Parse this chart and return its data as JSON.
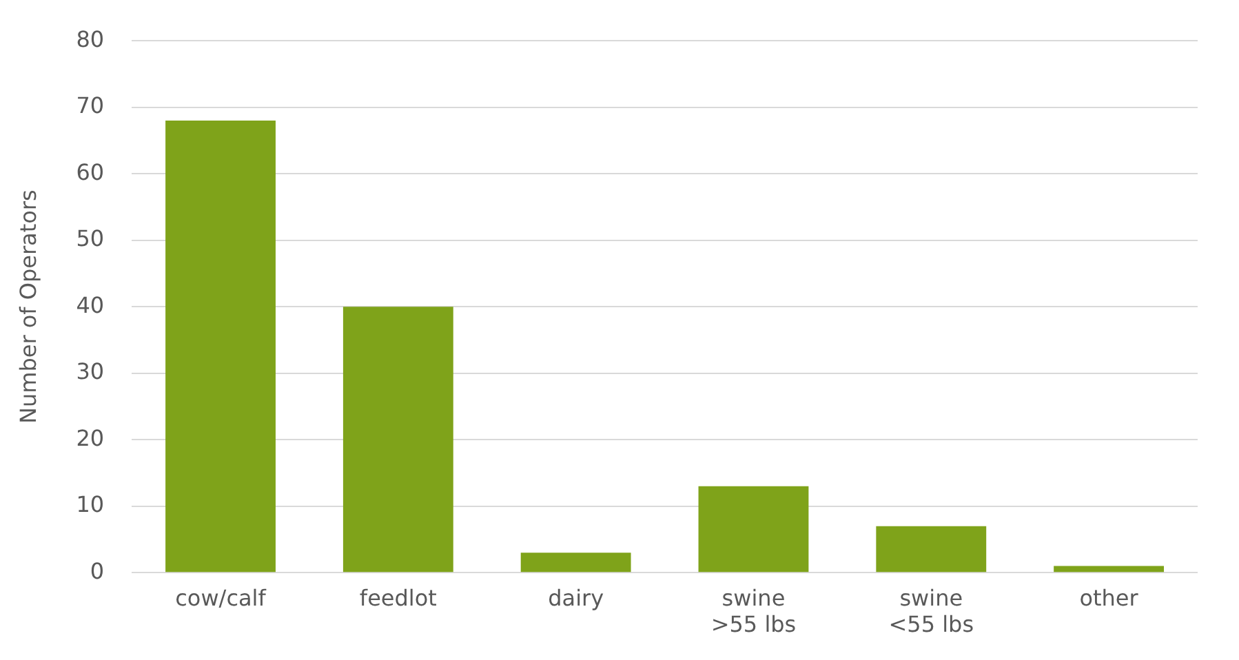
{
  "chart_data": {
    "type": "bar",
    "ylabel": "Number of Operators",
    "categories": [
      "cow/calf",
      "feedlot",
      "dairy",
      "swine\n>55 lbs",
      "swine\n<55 lbs",
      "other"
    ],
    "values": [
      68,
      40,
      3,
      13,
      7,
      1
    ],
    "color": "#7fa31a",
    "ylim": [
      0,
      80
    ],
    "yticks": [
      0,
      10,
      20,
      30,
      40,
      50,
      60,
      70,
      80
    ],
    "grid": "y",
    "legend": false
  }
}
